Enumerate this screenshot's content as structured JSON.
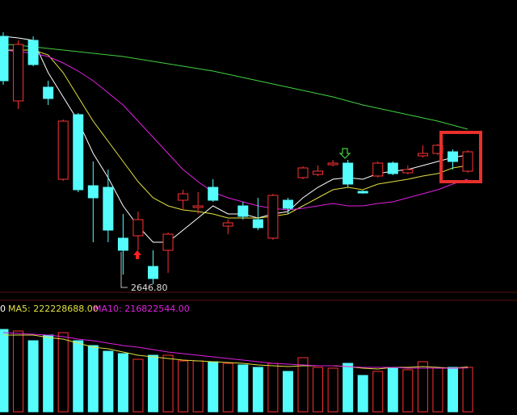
{
  "chart_data": [
    {
      "type": "candlestick",
      "annotation": "2646.80",
      "up_color": "#ff3232",
      "down_color": "#54fcfc",
      "open": [
        2953.8,
        2873.8,
        2948.8,
        2890.8,
        2776.8,
        2856.8,
        2768.8,
        2766.8,
        2703.8,
        2706.8,
        2668.8,
        2688.8,
        2750.8,
        2741.8,
        2766.8,
        2718.8,
        2743.8,
        2726.8,
        2703.8,
        2750.8,
        2778.8,
        2782.8,
        2794.8,
        2796.8,
        2761.8,
        2780.8,
        2796.8,
        2784.8,
        2805.8,
        2808.8,
        2810.8,
        2786.8
      ],
      "high": [
        2958.8,
        2948.8,
        2953.8,
        2898.8,
        2850.8,
        2858.8,
        2798.8,
        2788.8,
        2733.8,
        2736.8,
        2688.8,
        2710.8,
        2763.8,
        2760.8,
        2776.8,
        2726.8,
        2748.8,
        2753.8,
        2758.8,
        2753.8,
        2792.8,
        2793.8,
        2800.8,
        2800.8,
        2762.8,
        2798.8,
        2798.8,
        2793.8,
        2818.8,
        2820.8,
        2813.8,
        2812.8
      ],
      "low": [
        2893.8,
        2863.8,
        2916.8,
        2868.8,
        2774.8,
        2760.8,
        2698.8,
        2698.8,
        2658.8,
        2688.8,
        2646.8,
        2660.8,
        2738.8,
        2733.8,
        2748.8,
        2708.8,
        2726.8,
        2713.8,
        2701.8,
        2733.8,
        2776.8,
        2780.8,
        2792.8,
        2766.8,
        2758.8,
        2778.8,
        2781.8,
        2782.8,
        2803.8,
        2806.8,
        2788.8,
        2784.8
      ],
      "close": [
        2898.8,
        2943.8,
        2918.8,
        2876.8,
        2848.8,
        2763.8,
        2753.8,
        2713.8,
        2688.8,
        2726.8,
        2653.8,
        2708.8,
        2758.8,
        2743.8,
        2750.8,
        2722.8,
        2730.8,
        2716.8,
        2756.8,
        2740.8,
        2790.8,
        2786.8,
        2796.8,
        2770.8,
        2759.8,
        2796.8,
        2783.8,
        2788.8,
        2808.8,
        2818.8,
        2798.8,
        2810.8
      ],
      "series": [
        {
          "color": "#ffffff",
          "values": [
            2953.8,
            2951.8,
            2948.8,
            2908.8,
            2878.8,
            2848.8,
            2808.8,
            2778.8,
            2743.8,
            2718.8,
            2698.8,
            2698.8,
            2713.8,
            2728.8,
            2743.8,
            2733.8,
            2733.8,
            2728.8,
            2733.8,
            2736.8,
            2753.8,
            2766.8,
            2776.8,
            2778.8,
            2776.8,
            2783.8,
            2786.8,
            2788.8,
            2793.8,
            2798.8,
            2803.8,
            2806.8
          ]
        },
        {
          "color": "#e0e040",
          "values": [
            2936.8,
            2936.8,
            2936.8,
            2930.8,
            2908.8,
            2878.8,
            2848.8,
            2823.8,
            2798.8,
            2773.8,
            2753.8,
            2743.8,
            2738.8,
            2736.8,
            2733.8,
            2728.8,
            2728.8,
            2728.8,
            2730.8,
            2733.8,
            2743.8,
            2753.8,
            2763.8,
            2766.8,
            2763.8,
            2770.8,
            2773.8,
            2776.8,
            2780.8,
            2783.8,
            2790.8,
            2793.8
          ]
        },
        {
          "color": "#e020e0",
          "values": [
            2936.8,
            2934.8,
            2932.8,
            2928.8,
            2920.8,
            2910.8,
            2898.8,
            2883.8,
            2868.8,
            2848.8,
            2828.8,
            2808.8,
            2788.8,
            2773.8,
            2760.8,
            2753.8,
            2748.8,
            2743.8,
            2740.8,
            2738.8,
            2740.8,
            2743.8,
            2746.8,
            2743.8,
            2743.8,
            2746.8,
            2748.8,
            2753.8,
            2758.8,
            2763.8,
            2770.8,
            2776.8
          ]
        },
        {
          "color": "#40d040",
          "values": [
            2943.8,
            2942.8,
            2940.8,
            2938.8,
            2936.8,
            2934.8,
            2932.8,
            2930.8,
            2928.8,
            2925.8,
            2922.8,
            2919.8,
            2916.8,
            2913.8,
            2910.8,
            2906.8,
            2902.8,
            2898.8,
            2894.8,
            2890.8,
            2886.8,
            2882.8,
            2878.8,
            2873.8,
            2868.8,
            2864.8,
            2860.8,
            2856.8,
            2852.8,
            2848.8,
            2843.8,
            2838.8
          ]
        }
      ],
      "ylim": [
        2638.8,
        2998.8
      ]
    },
    {
      "type": "bar",
      "title": "0",
      "values": [
        408000000,
        400000000,
        352000000,
        380000000,
        392000000,
        352000000,
        328000000,
        300000000,
        288000000,
        260000000,
        280000000,
        280000000,
        252000000,
        252000000,
        248000000,
        240000000,
        232000000,
        220000000,
        240000000,
        200000000,
        268000000,
        220000000,
        216000000,
        240000000,
        180000000,
        200000000,
        216000000,
        208000000,
        248000000,
        216000000,
        220000000,
        220000000
      ],
      "series": [
        {
          "name": "MA5: 222228688.00",
          "color": "#e0e040",
          "values": [
            380000000,
            380000000,
            380000000,
            368000000,
            360000000,
            340000000,
            320000000,
            312000000,
            296000000,
            280000000,
            272000000,
            264000000,
            256000000,
            252000000,
            248000000,
            244000000,
            240000000,
            232000000,
            228000000,
            224000000,
            228000000,
            228000000,
            228000000,
            224000000,
            216000000,
            212000000,
            220000000,
            220000000,
            224000000,
            220000000,
            216000000,
            222228688
          ]
        },
        {
          "name": "MA10: 216822544.00",
          "color": "#e020e0",
          "values": [
            392000000,
            388000000,
            384000000,
            380000000,
            372000000,
            360000000,
            352000000,
            340000000,
            328000000,
            320000000,
            308000000,
            296000000,
            288000000,
            280000000,
            272000000,
            264000000,
            256000000,
            248000000,
            240000000,
            236000000,
            232000000,
            228000000,
            228000000,
            224000000,
            220000000,
            220000000,
            220000000,
            216000000,
            216000000,
            216000000,
            216000000,
            216822544
          ]
        }
      ],
      "ylim": [
        0,
        408000000
      ]
    }
  ]
}
